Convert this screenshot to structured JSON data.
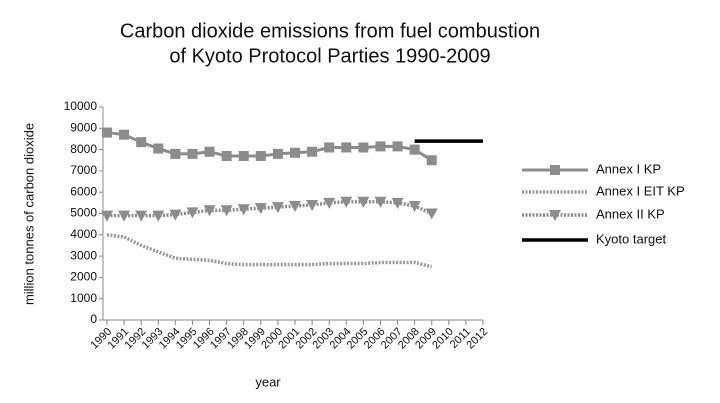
{
  "chart_data": {
    "type": "line",
    "title": [
      "Carbon dioxide emissions from fuel combustion",
      "of Kyoto Protocol Parties 1990-2009"
    ],
    "y_label": "million tonnes of carbon dioxide",
    "x_label": "year",
    "categories": [
      "1990",
      "1991",
      "1992",
      "1993",
      "1994",
      "1995",
      "1996",
      "1997",
      "1998",
      "1999",
      "2000",
      "2001",
      "2002",
      "2003",
      "2004",
      "2005",
      "2006",
      "2007",
      "2008",
      "2009",
      "2010",
      "2011",
      "2012"
    ],
    "ylim": [
      0,
      10000
    ],
    "yticks": [
      0,
      1000,
      2000,
      3000,
      4000,
      5000,
      6000,
      7000,
      8000,
      9000,
      10000
    ],
    "grid": false,
    "legend": "right",
    "series": [
      {
        "name": "Annex I KP",
        "color": "#8c8c8c",
        "marker": "square",
        "dash": "solid",
        "values": [
          8800,
          8700,
          8350,
          8050,
          7800,
          7800,
          7900,
          7700,
          7700,
          7700,
          7800,
          7850,
          7900,
          8100,
          8100,
          8100,
          8150,
          8150,
          8000,
          7500,
          null,
          null,
          null
        ]
      },
      {
        "name": "Annex I EIT KP",
        "color": "#9a9a9a",
        "marker": "none",
        "dash": "dotted",
        "values": [
          4000,
          3900,
          3500,
          3200,
          2900,
          2850,
          2800,
          2650,
          2600,
          2600,
          2600,
          2600,
          2600,
          2650,
          2650,
          2650,
          2700,
          2700,
          2700,
          2500,
          null,
          null,
          null
        ]
      },
      {
        "name": "Annex II KP",
        "color": "#8c8c8c",
        "marker": "triangle",
        "dash": "dotted",
        "values": [
          4900,
          4900,
          4900,
          4900,
          4950,
          5050,
          5150,
          5150,
          5200,
          5250,
          5300,
          5350,
          5400,
          5500,
          5550,
          5550,
          5550,
          5500,
          5350,
          5000,
          null,
          null,
          null
        ]
      },
      {
        "name": "Kyoto target",
        "color": "#000000",
        "marker": "none",
        "dash": "solid",
        "values": [
          null,
          null,
          null,
          null,
          null,
          null,
          null,
          null,
          null,
          null,
          null,
          null,
          null,
          null,
          null,
          null,
          null,
          null,
          8400,
          8400,
          8400,
          8400,
          8400
        ]
      }
    ]
  }
}
